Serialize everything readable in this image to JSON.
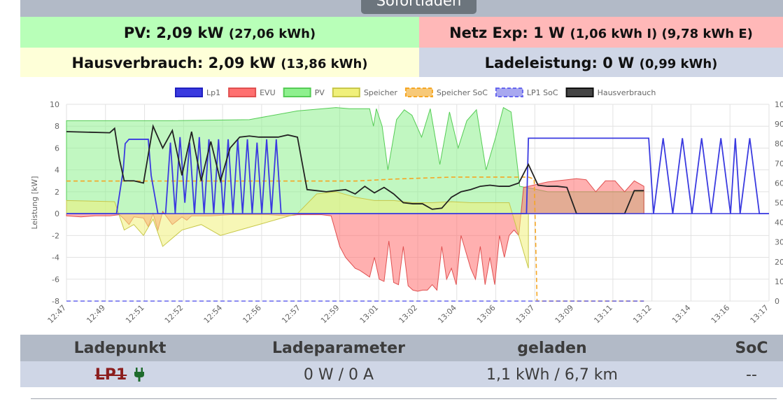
{
  "mode_button": {
    "label": "Sofortladen"
  },
  "summary": {
    "pv_label": "PV: 2,09 kW",
    "pv_detail": "(27,06 kWh)",
    "netz_label": "Netz Exp: 1 W",
    "netz_detail": "(1,06 kWh I) (9,78 kWh E)",
    "haus_label": "Hausverbrauch: 2,09 kW",
    "haus_detail": "(13,86 kWh)",
    "lade_label": "Ladeleistung: 0 W",
    "lade_detail": "(0,99 kWh)"
  },
  "colors": {
    "lp1": "#3a3ae0",
    "evu": "#ff7070",
    "pv": "#8ef08e",
    "speicher": "#f0f07a",
    "speicher_soc": "#f5a623",
    "lp1_soc": "#6666ee",
    "hausverbrauch": "#222222"
  },
  "chart_data": {
    "type": "line",
    "ylabel": "Leistung [kW]",
    "ylim": [
      -8,
      10
    ],
    "y_ticks": [
      "10",
      "8",
      "6",
      "4",
      "2",
      "0",
      "-2",
      "-4",
      "-6",
      "-8"
    ],
    "y2lim": [
      0,
      100
    ],
    "y2_ticks": [
      "100",
      "90",
      "80",
      "70",
      "60",
      "50",
      "40",
      "30",
      "20",
      "10",
      "0"
    ],
    "x_labels": [
      "12:47",
      "12:49",
      "12:51",
      "12:52",
      "12:54",
      "12:56",
      "12:57",
      "12:59",
      "13:01",
      "13:02",
      "13:04",
      "13:06",
      "13:07",
      "13:09",
      "13:11",
      "13:12",
      "13:14",
      "13:16",
      "13:17"
    ],
    "legend": [
      "Lp1",
      "EVU",
      "PV",
      "Speicher",
      "Speicher SoC",
      "LP1 SoC",
      "Hausverbrauch"
    ],
    "legend_position": "top",
    "grid": true,
    "series": [
      {
        "name": "PV",
        "t": [
          0,
          11,
          19,
          24,
          28,
          29.4,
          31.5,
          31.9,
          32.2,
          32.8,
          33.4,
          34.3,
          35.1,
          35.9,
          36.9,
          37.8,
          38.8,
          39.8,
          40.7,
          41.6,
          42.6,
          43.6,
          44.6,
          45.4,
          46.2,
          47.1,
          48.4,
          50,
          60
        ],
        "values": [
          8.5,
          8.5,
          8.6,
          9.4,
          9.7,
          9.6,
          9.6,
          8.0,
          9.6,
          8.0,
          4.0,
          8.6,
          9.5,
          9.0,
          7.0,
          9.6,
          4.5,
          9.3,
          6.0,
          8.5,
          9.5,
          4.0,
          7.0,
          9.7,
          9.3,
          2.5,
          2.3,
          2.0,
          2.0
        ]
      },
      {
        "name": "EVU",
        "t": [
          0,
          1.5,
          3,
          4.5,
          5.5,
          6,
          6.5,
          7,
          8,
          8.5,
          9,
          9.5,
          10,
          11,
          12,
          12.5,
          13,
          14,
          15,
          17,
          19,
          21,
          23,
          24,
          24.5,
          25,
          26.5,
          27.5,
          28.4,
          29,
          29.5,
          30,
          30.5,
          31,
          31.5,
          32,
          32.5,
          33,
          33.5,
          34,
          34.5,
          35,
          35.5,
          36,
          36.5,
          37,
          37.5,
          38,
          38.5,
          39,
          39.5,
          40,
          40.5,
          41,
          41.5,
          42,
          42.5,
          43,
          43.5,
          44,
          44.5,
          45,
          45.5,
          46,
          46.5,
          47,
          47.5,
          48,
          48.5,
          49,
          49.5,
          50,
          51,
          52,
          53,
          54,
          55,
          56,
          57,
          58,
          59,
          60
        ],
        "values": [
          -0.2,
          -0.3,
          -0.2,
          -0.2,
          -0.1,
          -0.5,
          -1.0,
          -0.3,
          -0.4,
          -1.2,
          0.0,
          -1.5,
          0.2,
          -1.0,
          -0.3,
          -0.6,
          -0.2,
          -0.2,
          -0.2,
          -0.1,
          -0.1,
          -0.1,
          -0.2,
          -0.1,
          -0.1,
          -0.1,
          -0.1,
          -0.2,
          -3.0,
          -4.0,
          -4.5,
          -5.0,
          -5.2,
          -5.5,
          -5.8,
          -4.0,
          -6.0,
          -6.2,
          -2.5,
          -6.3,
          -6.5,
          -3.0,
          -6.6,
          -7.0,
          -7.1,
          -7.0,
          -7.0,
          -6.5,
          -7.0,
          -3.0,
          -6.0,
          -5.0,
          -6.5,
          -2.0,
          -3.5,
          -5.0,
          -6.0,
          -3.0,
          -6.5,
          -4.0,
          -6.5,
          -2.0,
          -4.0,
          -2.0,
          -1.5,
          -2.0,
          2.4,
          2.5,
          2.6,
          2.7,
          2.8,
          2.9,
          3.0,
          3.1,
          3.2,
          3.1,
          2.0,
          3.0,
          3.0,
          2.0,
          3.0,
          2.5
        ]
      },
      {
        "name": "Speicher",
        "t": [
          0,
          5,
          6,
          7,
          8,
          9,
          10,
          12,
          14,
          16,
          18,
          20,
          22,
          24,
          26,
          28,
          30,
          32,
          34,
          36,
          38,
          40,
          42,
          44,
          46,
          47,
          48
        ],
        "values": [
          1.2,
          1.1,
          -1.5,
          -1.0,
          -2.0,
          -0.5,
          -3.0,
          -1.5,
          -1.0,
          -2.0,
          -1.5,
          -1.0,
          -0.5,
          0.0,
          1.8,
          2.0,
          1.5,
          1.2,
          1.2,
          1.0,
          1.0,
          1.1,
          1.0,
          1.0,
          1.0,
          -2.0,
          -5.0
        ]
      },
      {
        "name": "Speicher SoC",
        "t": [
          0,
          10,
          20,
          26,
          30,
          34,
          40,
          46,
          48,
          48.6,
          48.9,
          60
        ],
        "values": [
          61,
          61,
          61,
          61,
          61,
          62,
          63,
          63,
          63,
          62,
          0,
          0
        ]
      },
      {
        "name": "LP1 SoC",
        "t": [
          0,
          60
        ],
        "values": [
          0,
          0
        ]
      },
      {
        "name": "Lp1",
        "t": [
          0,
          5.2,
          5.9,
          6.1,
          6.5,
          8.5,
          8.8,
          9.5,
          10.3,
          10.8,
          11.3,
          11.8,
          12.3,
          12.8,
          13.3,
          13.8,
          14.3,
          14.8,
          15.3,
          15.8,
          16.3,
          16.8,
          17.3,
          17.8,
          18.3,
          18.8,
          19.3,
          19.8,
          20.3,
          20.8,
          21.3,
          21.8,
          22.3,
          34,
          47.8,
          48,
          48.4,
          60.5,
          61,
          62,
          63,
          64,
          65,
          66,
          67,
          68,
          69,
          69.5,
          70,
          71,
          72,
          73
        ],
        "values": [
          0,
          0,
          4,
          6.4,
          6.8,
          6.8,
          3.5,
          0,
          0,
          6.5,
          0,
          7.0,
          1.0,
          6.5,
          0,
          7.0,
          0,
          6.8,
          0,
          6.8,
          0,
          6.8,
          0,
          6.8,
          0,
          6.8,
          0,
          6.5,
          0,
          6.8,
          0,
          6.8,
          0,
          0,
          0,
          6.9,
          6.9,
          6.9,
          0,
          6.9,
          0,
          6.9,
          0,
          6.9,
          0,
          6.9,
          0,
          6.9,
          0,
          6.9,
          0,
          0
        ]
      },
      {
        "name": "Hausverbrauch",
        "t": [
          0,
          4.5,
          5,
          5.5,
          6,
          7,
          8,
          9,
          10,
          11,
          12,
          13,
          14,
          15,
          16,
          17,
          18,
          19,
          20,
          21,
          22,
          23,
          24,
          25,
          26,
          27,
          28,
          29,
          30,
          31,
          32,
          33,
          34,
          35,
          36,
          37,
          38,
          39,
          40,
          41,
          42,
          43,
          44,
          45,
          46,
          47,
          48,
          49,
          50,
          51,
          52,
          53,
          54,
          55,
          56,
          57,
          58,
          59,
          60
        ],
        "values": [
          7.5,
          7.4,
          7.8,
          5.0,
          3.0,
          3.0,
          2.8,
          8.0,
          6.0,
          7.6,
          3.5,
          7.5,
          3.0,
          6.6,
          3.0,
          6.0,
          7.0,
          7.1,
          7.0,
          7.0,
          7.0,
          7.2,
          7.0,
          2.2,
          2.1,
          2.0,
          2.1,
          2.2,
          1.8,
          2.5,
          1.9,
          2.4,
          1.8,
          1.0,
          0.9,
          0.9,
          0.4,
          0.5,
          1.5,
          2.0,
          2.2,
          2.5,
          2.6,
          2.5,
          2.5,
          2.8,
          4.5,
          2.6,
          2.5,
          2.5,
          2.4,
          0.0,
          0.0,
          0.0,
          0.0,
          0.0,
          0.0,
          2.1,
          2.1
        ]
      }
    ]
  },
  "table": {
    "headers": [
      "Ladepunkt",
      "Ladeparameter",
      "geladen",
      "SoC"
    ],
    "row": {
      "ladepunkt": "LP1",
      "plug_icon": "plug-icon",
      "parameter": "0 W / 0 A",
      "geladen": "1,1 kWh / 6,7 km",
      "soc": "--"
    }
  }
}
